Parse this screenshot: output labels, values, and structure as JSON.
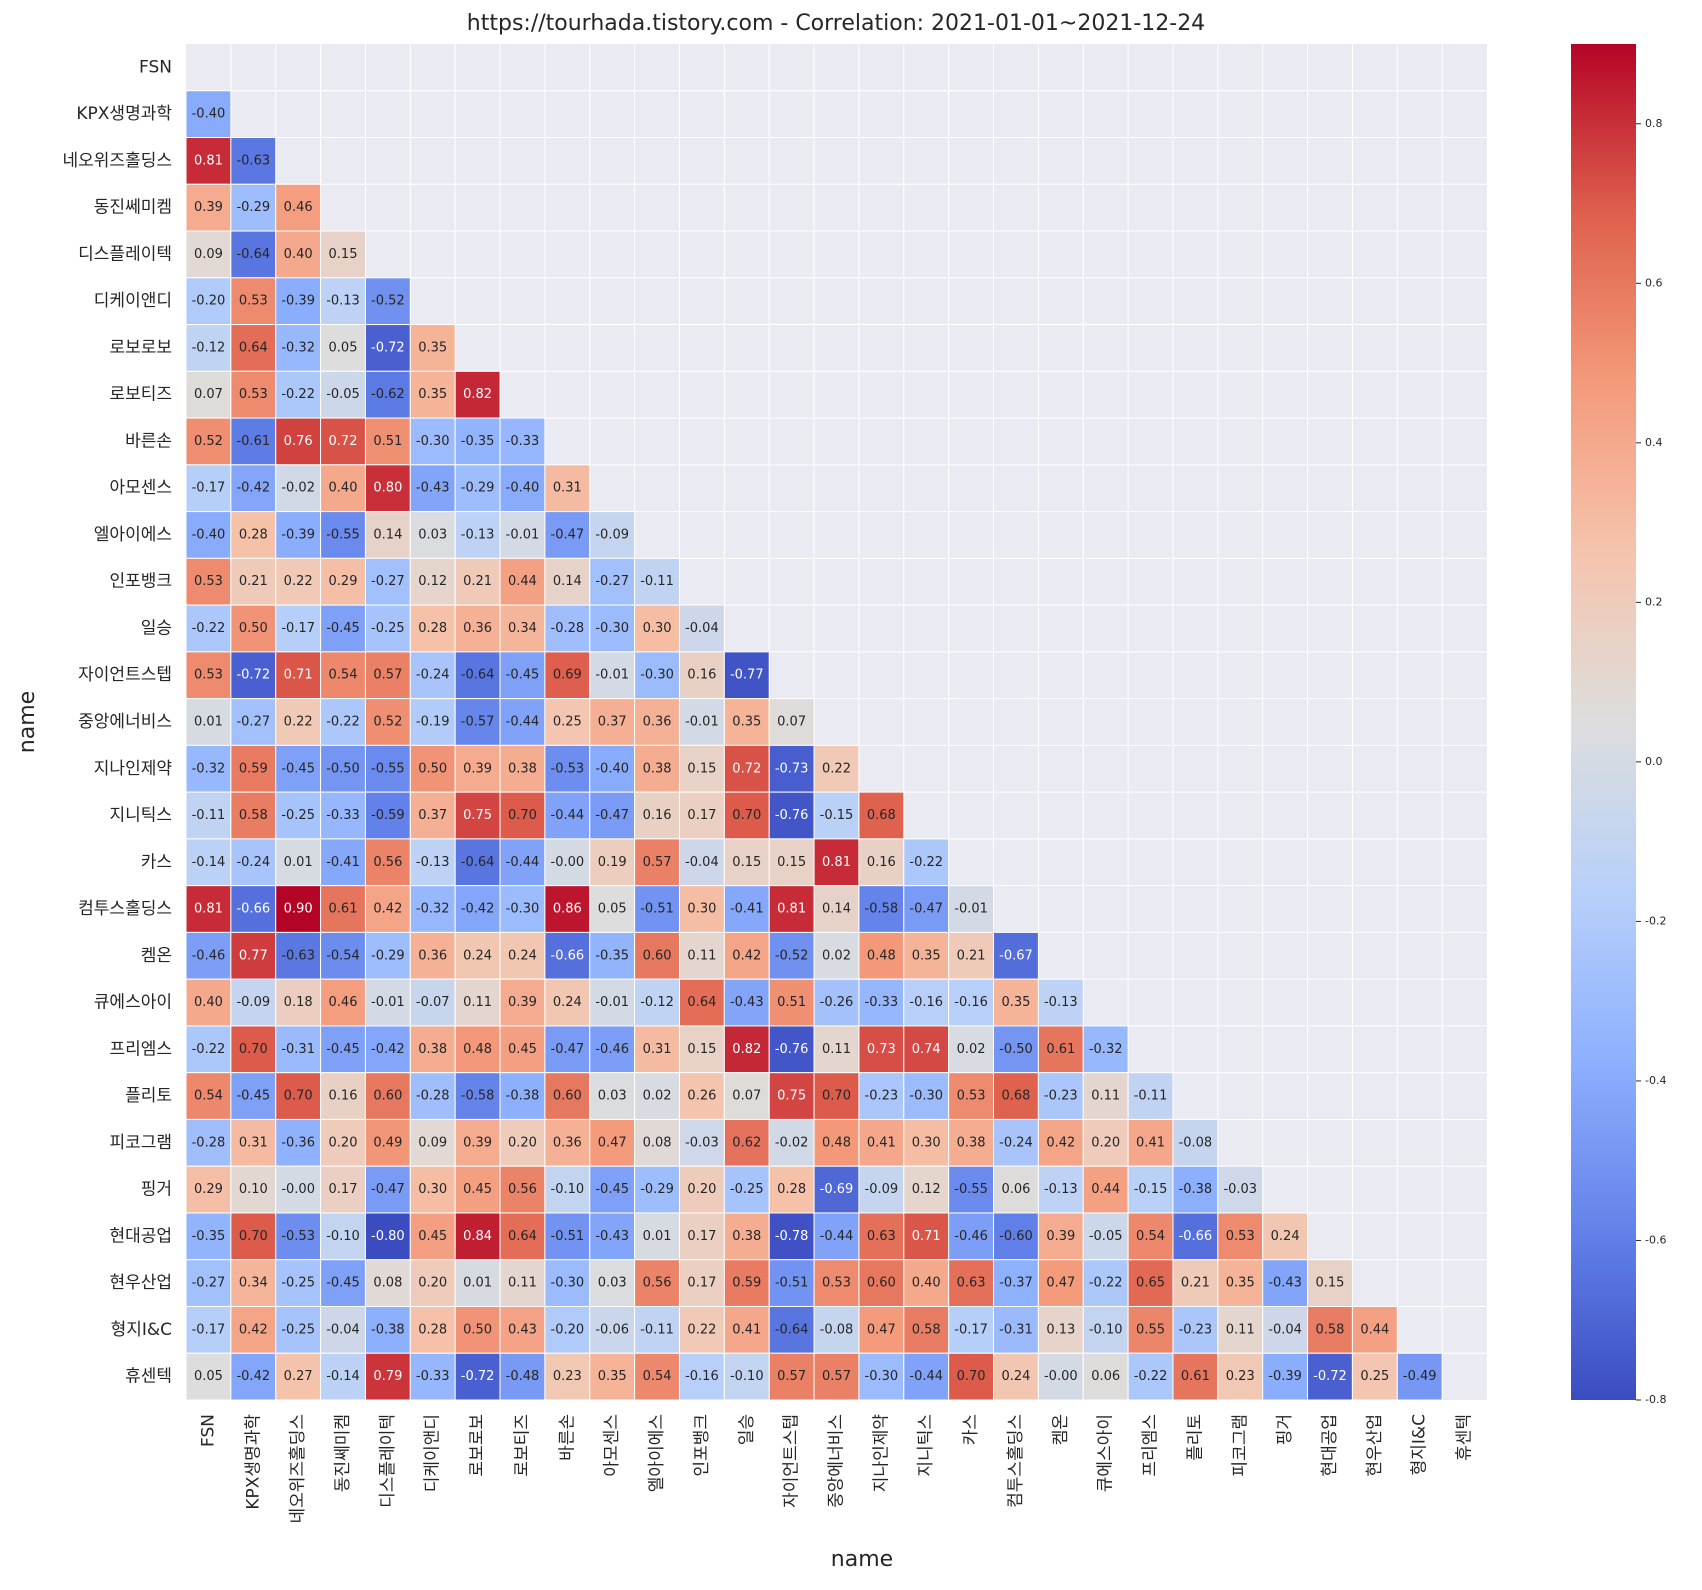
{
  "chart_data": {
    "type": "heatmap",
    "title": "https://tourhada.tistory.com - Correlation: 2021-01-01~2021-12-24",
    "xlabel": "name",
    "ylabel": "name",
    "colormap": "coolwarm",
    "clim": [
      -0.8,
      0.9
    ],
    "categories": [
      "FSN",
      "KPX생명과학",
      "네오위즈홀딩스",
      "동진쎄미켐",
      "디스플레이텍",
      "디케이앤디",
      "로보로보",
      "로보티즈",
      "바른손",
      "아모센스",
      "엘아이에스",
      "인포뱅크",
      "일승",
      "자이언트스텝",
      "중앙에너비스",
      "지나인제약",
      "지니틱스",
      "카스",
      "컴투스홀딩스",
      "켐온",
      "큐에스아이",
      "프리엠스",
      "플리토",
      "피코그램",
      "핑거",
      "현대공업",
      "현우산업",
      "형지I&C",
      "휴센텍"
    ],
    "values": [
      [],
      [
        -0.4
      ],
      [
        0.81,
        -0.63
      ],
      [
        0.39,
        -0.29,
        0.46
      ],
      [
        0.09,
        -0.64,
        0.4,
        0.15
      ],
      [
        -0.2,
        0.53,
        -0.39,
        -0.13,
        -0.52
      ],
      [
        -0.12,
        0.64,
        -0.32,
        0.05,
        -0.72,
        0.35
      ],
      [
        0.07,
        0.53,
        -0.22,
        -0.05,
        -0.62,
        0.35,
        0.82
      ],
      [
        0.52,
        -0.61,
        0.76,
        0.72,
        0.51,
        -0.3,
        -0.35,
        -0.33
      ],
      [
        -0.17,
        -0.42,
        -0.02,
        0.4,
        0.8,
        -0.43,
        -0.29,
        -0.4,
        0.31
      ],
      [
        -0.4,
        0.28,
        -0.39,
        -0.55,
        0.14,
        0.03,
        -0.13,
        -0.01,
        -0.47,
        -0.09
      ],
      [
        0.53,
        0.21,
        0.22,
        0.29,
        -0.27,
        0.12,
        0.21,
        0.44,
        0.14,
        -0.27,
        -0.11
      ],
      [
        -0.22,
        0.5,
        -0.17,
        -0.45,
        -0.25,
        0.28,
        0.36,
        0.34,
        -0.28,
        -0.3,
        0.3,
        -0.04
      ],
      [
        0.53,
        -0.72,
        0.71,
        0.54,
        0.57,
        -0.24,
        -0.64,
        -0.45,
        0.69,
        -0.01,
        -0.3,
        0.16,
        -0.77
      ],
      [
        0.01,
        -0.27,
        0.22,
        -0.22,
        0.52,
        -0.19,
        -0.57,
        -0.44,
        0.25,
        0.37,
        0.36,
        -0.01,
        0.35,
        0.07
      ],
      [
        -0.32,
        0.59,
        -0.45,
        -0.5,
        -0.55,
        0.5,
        0.39,
        0.38,
        -0.53,
        -0.4,
        0.38,
        0.15,
        0.72,
        -0.73,
        0.22
      ],
      [
        -0.11,
        0.58,
        -0.25,
        -0.33,
        -0.59,
        0.37,
        0.75,
        0.7,
        -0.44,
        -0.47,
        0.16,
        0.17,
        0.7,
        -0.76,
        -0.15,
        0.68
      ],
      [
        -0.14,
        -0.24,
        0.01,
        -0.41,
        0.56,
        -0.13,
        -0.64,
        -0.44,
        -0.0,
        0.19,
        0.57,
        -0.04,
        0.15,
        0.15,
        0.81,
        0.16,
        -0.22
      ],
      [
        0.81,
        -0.66,
        0.9,
        0.61,
        0.42,
        -0.32,
        -0.42,
        -0.3,
        0.86,
        0.05,
        -0.51,
        0.3,
        -0.41,
        0.81,
        0.14,
        -0.58,
        -0.47,
        -0.01
      ],
      [
        -0.46,
        0.77,
        -0.63,
        -0.54,
        -0.29,
        0.36,
        0.24,
        0.24,
        -0.66,
        -0.35,
        0.6,
        0.11,
        0.42,
        -0.52,
        0.02,
        0.48,
        0.35,
        0.21,
        -0.67
      ],
      [
        0.4,
        -0.09,
        0.18,
        0.46,
        -0.01,
        -0.07,
        0.11,
        0.39,
        0.24,
        -0.01,
        -0.12,
        0.64,
        -0.43,
        0.51,
        -0.26,
        -0.33,
        -0.16,
        -0.16,
        0.35,
        -0.13
      ],
      [
        -0.22,
        0.7,
        -0.31,
        -0.45,
        -0.42,
        0.38,
        0.48,
        0.45,
        -0.47,
        -0.46,
        0.31,
        0.15,
        0.82,
        -0.76,
        0.11,
        0.73,
        0.74,
        0.02,
        -0.5,
        0.61,
        -0.32
      ],
      [
        0.54,
        -0.45,
        0.7,
        0.16,
        0.6,
        -0.28,
        -0.58,
        -0.38,
        0.6,
        0.03,
        0.02,
        0.26,
        0.07,
        0.75,
        0.7,
        -0.23,
        -0.3,
        0.53,
        0.68,
        -0.23,
        0.11,
        -0.11
      ],
      [
        -0.28,
        0.31,
        -0.36,
        0.2,
        0.49,
        0.09,
        0.39,
        0.2,
        0.36,
        0.47,
        0.08,
        -0.03,
        0.62,
        -0.02,
        0.48,
        0.41,
        0.3,
        0.38,
        -0.24,
        0.42,
        0.2,
        0.41,
        -0.08
      ],
      [
        0.29,
        0.1,
        -0.0,
        0.17,
        -0.47,
        0.3,
        0.45,
        0.56,
        -0.1,
        -0.45,
        -0.29,
        0.2,
        -0.25,
        0.28,
        -0.69,
        -0.09,
        0.12,
        -0.55,
        0.06,
        -0.13,
        0.44,
        -0.15,
        -0.38,
        -0.03
      ],
      [
        -0.35,
        0.7,
        -0.53,
        -0.1,
        -0.8,
        0.45,
        0.84,
        0.64,
        -0.51,
        -0.43,
        0.01,
        0.17,
        0.38,
        -0.78,
        -0.44,
        0.63,
        0.71,
        -0.46,
        -0.6,
        0.39,
        -0.05,
        0.54,
        -0.66,
        0.53,
        0.24
      ],
      [
        -0.27,
        0.34,
        -0.25,
        -0.45,
        0.08,
        0.2,
        0.01,
        0.11,
        -0.3,
        0.03,
        0.56,
        0.17,
        0.59,
        -0.51,
        0.53,
        0.6,
        0.4,
        0.63,
        -0.37,
        0.47,
        -0.22,
        0.65,
        0.21,
        0.35,
        -0.43,
        0.15
      ],
      [
        -0.17,
        0.42,
        -0.25,
        -0.04,
        -0.38,
        0.28,
        0.5,
        0.43,
        -0.2,
        -0.06,
        -0.11,
        0.22,
        0.41,
        -0.64,
        -0.08,
        0.47,
        0.58,
        -0.17,
        -0.31,
        0.13,
        -0.1,
        0.55,
        -0.23,
        0.11,
        -0.04,
        0.58,
        0.44
      ],
      [
        0.05,
        -0.42,
        0.27,
        -0.14,
        0.79,
        -0.33,
        -0.72,
        -0.48,
        0.23,
        0.35,
        0.54,
        -0.16,
        -0.1,
        0.57,
        0.57,
        -0.3,
        -0.44,
        0.7,
        0.24,
        -0.0,
        0.06,
        -0.22,
        0.61,
        0.23,
        -0.39,
        -0.72,
        0.25,
        -0.49
      ]
    ],
    "value_labels": [
      [],
      [
        "-0.40"
      ],
      [
        "0.81",
        "-0.63"
      ],
      [
        "0.39",
        "-0.29",
        "0.46"
      ],
      [
        "0.09",
        "-0.64",
        "0.40",
        "0.15"
      ],
      [
        "-0.20",
        "0.53",
        "-0.39",
        "-0.13",
        "-0.52"
      ],
      [
        "-0.12",
        "0.64",
        "-0.32",
        "0.05",
        "-0.72",
        "0.35"
      ],
      [
        "0.07",
        "0.53",
        "-0.22",
        "-0.05",
        "-0.62",
        "0.35",
        "0.82"
      ],
      [
        "0.52",
        "-0.61",
        "0.76",
        "0.72",
        "0.51",
        "-0.30",
        "-0.35",
        "-0.33"
      ],
      [
        "-0.17",
        "-0.42",
        "-0.02",
        "0.40",
        "0.80",
        "-0.43",
        "-0.29",
        "-0.40",
        "0.31"
      ],
      [
        "-0.40",
        "0.28",
        "-0.39",
        "-0.55",
        "0.14",
        "0.03",
        "-0.13",
        "-0.01",
        "-0.47",
        "-0.09"
      ],
      [
        "0.53",
        "0.21",
        "0.22",
        "0.29",
        "-0.27",
        "0.12",
        "0.21",
        "0.44",
        "0.14",
        "-0.27",
        "-0.11"
      ],
      [
        "-0.22",
        "0.50",
        "-0.17",
        "-0.45",
        "-0.25",
        "0.28",
        "0.36",
        "0.34",
        "-0.28",
        "-0.30",
        "0.30",
        "-0.04"
      ],
      [
        "0.53",
        "-0.72",
        "0.71",
        "0.54",
        "0.57",
        "-0.24",
        "-0.64",
        "-0.45",
        "0.69",
        "-0.01",
        "-0.30",
        "0.16",
        "-0.77"
      ],
      [
        "0.01",
        "-0.27",
        "0.22",
        "-0.22",
        "0.52",
        "-0.19",
        "-0.57",
        "-0.44",
        "0.25",
        "0.37",
        "0.36",
        "-0.01",
        "0.35",
        "0.07"
      ],
      [
        "-0.32",
        "0.59",
        "-0.45",
        "-0.50",
        "-0.55",
        "0.50",
        "0.39",
        "0.38",
        "-0.53",
        "-0.40",
        "0.38",
        "0.15",
        "0.72",
        "-0.73",
        "0.22"
      ],
      [
        "-0.11",
        "0.58",
        "-0.25",
        "-0.33",
        "-0.59",
        "0.37",
        "0.75",
        "0.70",
        "-0.44",
        "-0.47",
        "0.16",
        "0.17",
        "0.70",
        "-0.76",
        "-0.15",
        "0.68"
      ],
      [
        "-0.14",
        "-0.24",
        "0.01",
        "-0.41",
        "0.56",
        "-0.13",
        "-0.64",
        "-0.44",
        "-0.00",
        "0.19",
        "0.57",
        "-0.04",
        "0.15",
        "0.15",
        "0.81",
        "0.16",
        "-0.22"
      ],
      [
        "0.81",
        "-0.66",
        "0.90",
        "0.61",
        "0.42",
        "-0.32",
        "-0.42",
        "-0.30",
        "0.86",
        "0.05",
        "-0.51",
        "0.30",
        "-0.41",
        "0.81",
        "0.14",
        "-0.58",
        "-0.47",
        "-0.01"
      ],
      [
        "-0.46",
        "0.77",
        "-0.63",
        "-0.54",
        "-0.29",
        "0.36",
        "0.24",
        "0.24",
        "-0.66",
        "-0.35",
        "0.60",
        "0.11",
        "0.42",
        "-0.52",
        "0.02",
        "0.48",
        "0.35",
        "0.21",
        "-0.67"
      ],
      [
        "0.40",
        "-0.09",
        "0.18",
        "0.46",
        "-0.01",
        "-0.07",
        "0.11",
        "0.39",
        "0.24",
        "-0.01",
        "-0.12",
        "0.64",
        "-0.43",
        "0.51",
        "-0.26",
        "-0.33",
        "-0.16",
        "-0.16",
        "0.35",
        "-0.13"
      ],
      [
        "-0.22",
        "0.70",
        "-0.31",
        "-0.45",
        "-0.42",
        "0.38",
        "0.48",
        "0.45",
        "-0.47",
        "-0.46",
        "0.31",
        "0.15",
        "0.82",
        "-0.76",
        "0.11",
        "0.73",
        "0.74",
        "0.02",
        "-0.50",
        "0.61",
        "-0.32"
      ],
      [
        "0.54",
        "-0.45",
        "0.70",
        "0.16",
        "0.60",
        "-0.28",
        "-0.58",
        "-0.38",
        "0.60",
        "0.03",
        "0.02",
        "0.26",
        "0.07",
        "0.75",
        "0.70",
        "-0.23",
        "-0.30",
        "0.53",
        "0.68",
        "-0.23",
        "0.11",
        "-0.11"
      ],
      [
        "-0.28",
        "0.31",
        "-0.36",
        "0.20",
        "0.49",
        "0.09",
        "0.39",
        "0.20",
        "0.36",
        "0.47",
        "0.08",
        "-0.03",
        "0.62",
        "-0.02",
        "0.48",
        "0.41",
        "0.30",
        "0.38",
        "-0.24",
        "0.42",
        "0.20",
        "0.41",
        "-0.08"
      ],
      [
        "0.29",
        "0.10",
        "-0.00",
        "0.17",
        "-0.47",
        "0.30",
        "0.45",
        "0.56",
        "-0.10",
        "-0.45",
        "-0.29",
        "0.20",
        "-0.25",
        "0.28",
        "-0.69",
        "-0.09",
        "0.12",
        "-0.55",
        "0.06",
        "-0.13",
        "0.44",
        "-0.15",
        "-0.38",
        "-0.03"
      ],
      [
        "-0.35",
        "0.70",
        "-0.53",
        "-0.10",
        "-0.80",
        "0.45",
        "0.84",
        "0.64",
        "-0.51",
        "-0.43",
        "0.01",
        "0.17",
        "0.38",
        "-0.78",
        "-0.44",
        "0.63",
        "0.71",
        "-0.46",
        "-0.60",
        "0.39",
        "-0.05",
        "0.54",
        "-0.66",
        "0.53",
        "0.24"
      ],
      [
        "-0.27",
        "0.34",
        "-0.25",
        "-0.45",
        "0.08",
        "0.20",
        "0.01",
        "0.11",
        "-0.30",
        "0.03",
        "0.56",
        "0.17",
        "0.59",
        "-0.51",
        "0.53",
        "0.60",
        "0.40",
        "0.63",
        "-0.37",
        "0.47",
        "-0.22",
        "0.65",
        "0.21",
        "0.35",
        "-0.43",
        "0.15"
      ],
      [
        "-0.17",
        "0.42",
        "-0.25",
        "-0.04",
        "-0.38",
        "0.28",
        "0.50",
        "0.43",
        "-0.20",
        "-0.06",
        "-0.11",
        "0.22",
        "0.41",
        "-0.64",
        "-0.08",
        "0.47",
        "0.58",
        "-0.17",
        "-0.31",
        "0.13",
        "-0.10",
        "0.55",
        "-0.23",
        "0.11",
        "-0.04",
        "0.58",
        "0.44"
      ],
      [
        "0.05",
        "-0.42",
        "0.27",
        "-0.14",
        "0.79",
        "-0.33",
        "-0.72",
        "-0.48",
        "0.23",
        "0.35",
        "0.54",
        "-0.16",
        "-0.10",
        "0.57",
        "0.57",
        "-0.30",
        "-0.44",
        "0.70",
        "0.24",
        "-0.00",
        "0.06",
        "-0.22",
        "0.61",
        "0.23",
        "-0.39",
        "-0.72",
        "0.25",
        "-0.49"
      ]
    ],
    "cbar_ticks": [
      0.8,
      0.6,
      0.4,
      0.2,
      {
        "value": 0,
        "label": "0.0"
      },
      -0.2,
      -0.4,
      -0.6,
      -0.8
    ]
  }
}
